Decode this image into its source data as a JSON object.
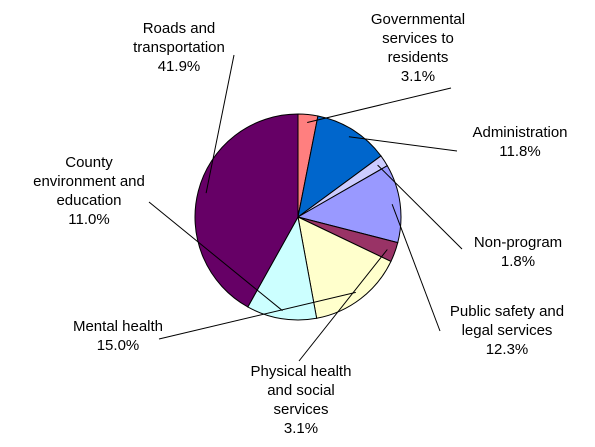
{
  "chart_data": {
    "type": "pie",
    "title": "",
    "start_direction": "clockwise from 12 o'clock",
    "slices": [
      {
        "label_lines": [
          "Governmental",
          "services to",
          "residents"
        ],
        "value": 3.1,
        "value_label": "3.1%",
        "color": "#FF7F7F"
      },
      {
        "label_lines": [
          "Administration"
        ],
        "value": 11.8,
        "value_label": "11.8%",
        "color": "#0066CC"
      },
      {
        "label_lines": [
          "Non-program"
        ],
        "value": 1.8,
        "value_label": "1.8%",
        "color": "#CCCCFF"
      },
      {
        "label_lines": [
          "Public safety and",
          "legal services"
        ],
        "value": 12.3,
        "value_label": "12.3%",
        "color": "#9999FF"
      },
      {
        "label_lines": [
          "Physical health",
          "and social",
          "services"
        ],
        "value": 3.1,
        "value_label": "3.1%",
        "color": "#993366"
      },
      {
        "label_lines": [
          "Mental health"
        ],
        "value": 15.0,
        "value_label": "15.0%",
        "color": "#FFFFCC"
      },
      {
        "label_lines": [
          "County",
          "environment and",
          "education"
        ],
        "value": 11.0,
        "value_label": "11.0%",
        "color": "#CCFFFF"
      },
      {
        "label_lines": [
          "Roads and",
          "transportation"
        ],
        "value": 41.9,
        "value_label": "41.9%",
        "color": "#660066"
      }
    ]
  }
}
